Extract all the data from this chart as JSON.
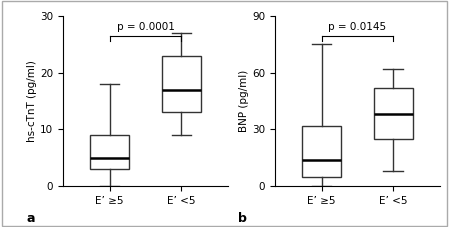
{
  "panel_a": {
    "ylabel": "hs-cTnT (pg/ml)",
    "panel_label": "a",
    "ylim": [
      0,
      30
    ],
    "yticks": [
      0,
      10,
      20,
      30
    ],
    "categories": [
      "E’ ≥5",
      "E’ <5"
    ],
    "pvalue": "p = 0.0001",
    "box1": {
      "whislo": 0,
      "q1": 3,
      "med": 5,
      "q3": 9,
      "whishi": 18
    },
    "box2": {
      "whislo": 9,
      "q1": 13,
      "med": 17,
      "q3": 23,
      "whishi": 27
    }
  },
  "panel_b": {
    "ylabel": "BNP (pg/ml)",
    "panel_label": "b",
    "ylim": [
      0,
      90
    ],
    "yticks": [
      0,
      30,
      60,
      90
    ],
    "categories": [
      "E’ ≥5",
      "E’ <5"
    ],
    "pvalue": "p = 0.0145",
    "box1": {
      "whislo": 0,
      "q1": 5,
      "med": 14,
      "q3": 32,
      "whishi": 75
    },
    "box2": {
      "whislo": 8,
      "q1": 25,
      "med": 38,
      "q3": 52,
      "whishi": 62
    }
  },
  "box_color": "#ffffff",
  "box_edgecolor": "#333333",
  "median_color": "#000000",
  "whisker_color": "#333333",
  "background_color": "#ffffff",
  "fontsize": 8,
  "label_fontsize": 7.5
}
